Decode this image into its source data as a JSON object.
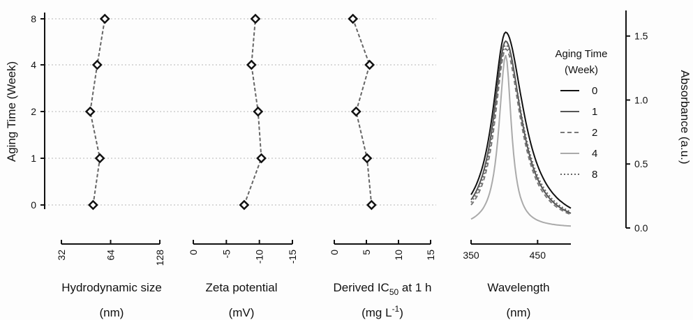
{
  "chart_data": [
    {
      "type": "scatter",
      "panel": "hydrodynamic-size",
      "ylabel": "Aging Time (Week)",
      "ycategories": [
        "0",
        "1",
        "2",
        "4",
        "8"
      ],
      "xlabel_line1": "Hydrodynamic size",
      "xlabel_line2": "(nm)",
      "xscale": "log2",
      "xlim": [
        32,
        128
      ],
      "xticks": [
        "32",
        "64",
        "128"
      ],
      "x": [
        50,
        55,
        48,
        53,
        59
      ],
      "y": [
        "0",
        "1",
        "2",
        "4",
        "8"
      ]
    },
    {
      "type": "scatter",
      "panel": "zeta-potential",
      "xlabel_line1": "Zeta potential",
      "xlabel_line2": "(mV)",
      "xlim": [
        0,
        -15
      ],
      "xticks": [
        "0",
        "-5",
        "-10",
        "-15"
      ],
      "x": [
        -7.7,
        -10.3,
        -9.8,
        -8.8,
        -9.4
      ],
      "y": [
        "0",
        "1",
        "2",
        "4",
        "8"
      ]
    },
    {
      "type": "scatter",
      "panel": "derived-ic50",
      "xlabel_line1": "Derived IC",
      "xlabel_sub": "50",
      "xlabel_tail": " at 1 h",
      "xlabel_line2": "(mg L",
      "xlabel_sup": "-1",
      "xlabel_line2_tail": ")",
      "xlim": [
        0,
        15
      ],
      "xticks": [
        "0",
        "5",
        "10",
        "15"
      ],
      "x": [
        5.8,
        5.1,
        3.4,
        5.5,
        2.9
      ],
      "y": [
        "0",
        "1",
        "2",
        "4",
        "8"
      ]
    },
    {
      "type": "line",
      "panel": "absorbance",
      "xlabel_line1": "Wavelength",
      "xlabel_line2": "(nm)",
      "ylabel": "Absorbance (a.u.)",
      "xlim": [
        350,
        500
      ],
      "xticks": [
        "350",
        "450"
      ],
      "ylim": [
        0,
        1.7
      ],
      "yticks": [
        "0.0",
        "0.5",
        "1.0",
        "1.5"
      ],
      "legend_title_line1": "Aging Time",
      "legend_title_line2": "(Week)",
      "legend_position": "right",
      "peak_wavelength": 402,
      "series": [
        {
          "name": "0",
          "peak": 1.53,
          "value_at_350": 0.26,
          "value_at_500": 0.14,
          "color": "#111111",
          "dash": "solid"
        },
        {
          "name": "1",
          "peak": 1.46,
          "value_at_350": 0.22,
          "value_at_500": 0.1,
          "color": "#555555",
          "dash": "solid"
        },
        {
          "name": "2",
          "peak": 1.4,
          "value_at_350": 0.18,
          "value_at_500": 0.09,
          "color": "#777777",
          "dash": "dashed"
        },
        {
          "name": "4",
          "peak": 1.35,
          "value_at_350": 0.07,
          "value_at_500": 0.0,
          "color": "#aaaaaa",
          "dash": "solid"
        },
        {
          "name": "8",
          "peak": 1.43,
          "value_at_350": 0.2,
          "value_at_500": 0.11,
          "color": "#666666",
          "dash": "dotted"
        }
      ]
    }
  ]
}
